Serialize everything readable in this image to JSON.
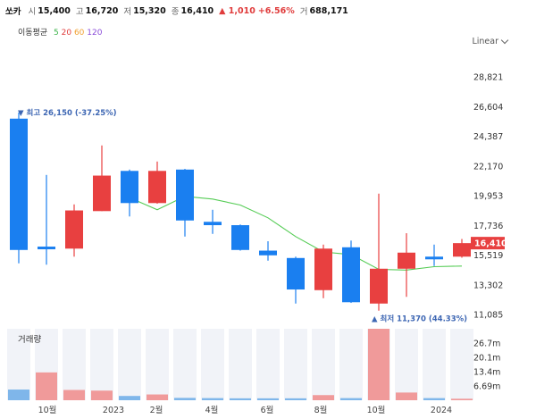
{
  "header": {
    "name": "쏘카",
    "open_label": "시",
    "open": "15,400",
    "high_label": "고",
    "high": "16,720",
    "low_label": "저",
    "low": "15,320",
    "close_label": "종",
    "close": "16,410",
    "change": "▲ 1,010",
    "change_pct": "+6.56%",
    "volume_label": "거",
    "volume": "688,171"
  },
  "ma_legend": {
    "title": "이동평균",
    "items": [
      "5",
      "20",
      "60",
      "120"
    ],
    "colors": [
      "#3cb44b",
      "#e03c3c",
      "#f0a030",
      "#8a4bd8"
    ]
  },
  "scale_mode": "Linear",
  "colors": {
    "up": "#e84040",
    "down": "#1a7ff0",
    "ma": "#55cc55",
    "vol_up": "#f09a9a",
    "vol_down": "#7fb6ea"
  },
  "chart_data": {
    "type": "candlestick",
    "y_ticks": [
      "28,821",
      "26,604",
      "24,387",
      "22,170",
      "19,953",
      "17,736",
      "15,519",
      "13,302",
      "11,085"
    ],
    "ylim": [
      11085,
      28821
    ],
    "x_ticks": [
      "10월",
      "2023",
      "2월",
      "4월",
      "6월",
      "8월",
      "10월",
      "2024"
    ],
    "candles": [
      {
        "o": 25700,
        "h": 26150,
        "l": 14900,
        "c": 15900
      },
      {
        "o": 16150,
        "h": 21500,
        "l": 14800,
        "c": 15950
      },
      {
        "o": 16000,
        "h": 19300,
        "l": 15400,
        "c": 18850
      },
      {
        "o": 18800,
        "h": 23700,
        "l": 18800,
        "c": 21450
      },
      {
        "o": 21800,
        "h": 21900,
        "l": 18400,
        "c": 19400
      },
      {
        "o": 19400,
        "h": 22500,
        "l": 19350,
        "c": 21800
      },
      {
        "o": 21900,
        "h": 21950,
        "l": 16900,
        "c": 18100
      },
      {
        "o": 18000,
        "h": 18900,
        "l": 17100,
        "c": 17750
      },
      {
        "o": 17750,
        "h": 17800,
        "l": 15850,
        "c": 15900
      },
      {
        "o": 15850,
        "h": 16550,
        "l": 15100,
        "c": 15500
      },
      {
        "o": 15300,
        "h": 15400,
        "l": 11900,
        "c": 12950
      },
      {
        "o": 12900,
        "h": 16300,
        "l": 12300,
        "c": 16000
      },
      {
        "o": 16100,
        "h": 16600,
        "l": 11950,
        "c": 12000
      },
      {
        "o": 11900,
        "h": 20100,
        "l": 11370,
        "c": 14500
      },
      {
        "o": 14500,
        "h": 17150,
        "l": 12400,
        "c": 15700
      },
      {
        "o": 15400,
        "h": 16300,
        "l": 14700,
        "c": 15200
      },
      {
        "o": 15400,
        "h": 16720,
        "l": 15320,
        "c": 16410
      }
    ],
    "ma_line": [
      null,
      null,
      null,
      null,
      19800,
      18900,
      19900,
      19700,
      19250,
      18300,
      16900,
      15750,
      15550,
      14450,
      14400,
      14650,
      14700
    ],
    "max_annotation": "최고 26,150 (-37.25%)",
    "min_annotation": "최저 11,370 (44.33%)",
    "last_price": "16,410",
    "volume_title": "거래량",
    "volume_ticks": [
      "26.7m",
      "20.1m",
      "13.4m",
      "6.69m"
    ],
    "volume_max": 33400000,
    "volumes": [
      5000000,
      13000000,
      4800000,
      4500000,
      2000000,
      2700000,
      1100000,
      1000000,
      900000,
      900000,
      900000,
      2400000,
      1000000,
      33500000,
      3600000,
      1000000,
      700000
    ],
    "volume_up": [
      false,
      true,
      true,
      true,
      false,
      true,
      false,
      false,
      false,
      false,
      false,
      true,
      false,
      true,
      true,
      false,
      true
    ]
  }
}
